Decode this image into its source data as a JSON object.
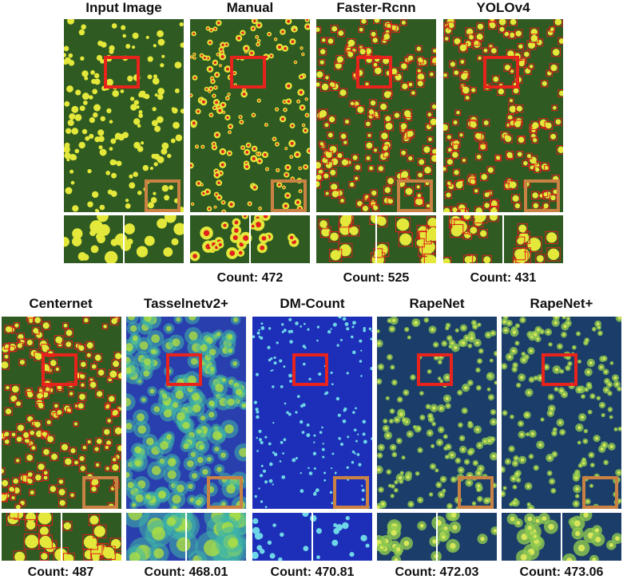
{
  "row1": [
    {
      "id": "input",
      "title": "Input Image",
      "count": "",
      "style": "rgb"
    },
    {
      "id": "manual",
      "title": "Manual",
      "count": "Count: 472",
      "style": "manual"
    },
    {
      "id": "faster",
      "title": "Faster-Rcnn",
      "count": "Count: 525",
      "style": "boxes"
    },
    {
      "id": "yolo",
      "title": "YOLOv4",
      "count": "Count: 431",
      "style": "boxes"
    }
  ],
  "row2": [
    {
      "id": "centernet",
      "title": "Centernet",
      "count": "Count: 487",
      "style": "boxes"
    },
    {
      "id": "tassel",
      "title": "Tasselnetv2+",
      "count": "Count: 468.01",
      "style": "heat"
    },
    {
      "id": "dm",
      "title": "DM-Count",
      "count": "Count: 470.81",
      "style": "dots"
    },
    {
      "id": "rapenet",
      "title": "RapeNet",
      "count": "Count: 472.03",
      "style": "overlay"
    },
    {
      "id": "rapenetplus",
      "title": "RapeNet+",
      "count": "Count: 473.06",
      "style": "overlay"
    }
  ],
  "colors": {
    "roi_red": "#e8231c",
    "roi_orange": "#c98243",
    "foliage": "#2f5a22",
    "flower": "#e3e83a",
    "heat_low": "#1a2f9e",
    "heat_high": "#b6e23a"
  }
}
